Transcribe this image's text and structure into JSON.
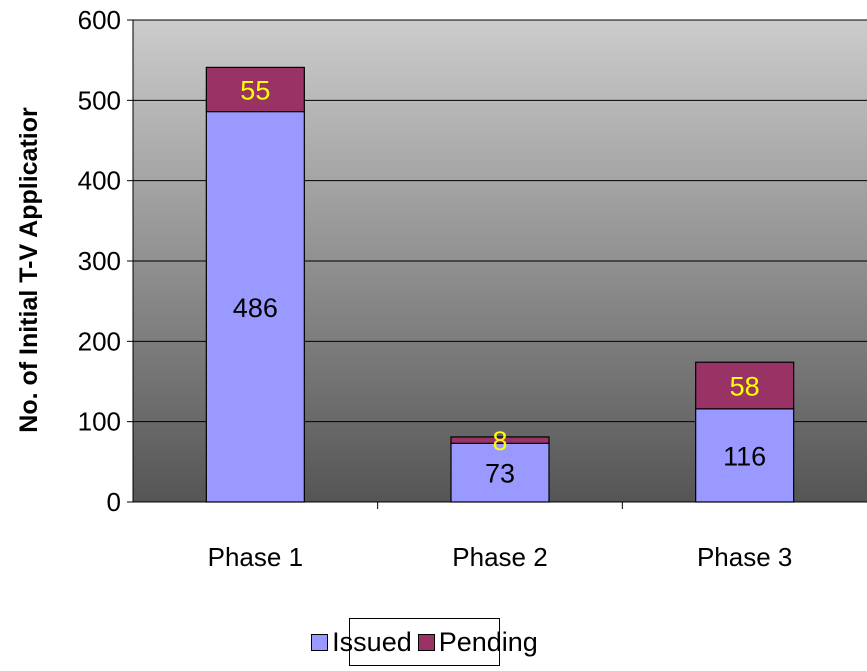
{
  "chart_data": {
    "type": "bar",
    "stacked": true,
    "categories": [
      "Phase 1",
      "Phase 2",
      "Phase 3"
    ],
    "series": [
      {
        "name": "Issued",
        "values": [
          486,
          73,
          116
        ],
        "color": "#9999ff",
        "label_color": "#000000"
      },
      {
        "name": "Pending",
        "values": [
          55,
          8,
          58
        ],
        "color": "#993366",
        "label_color": "#ffff00"
      }
    ],
    "title": "",
    "xlabel": "",
    "ylabel": "No. of Initial T-V Applicatior",
    "ylim": [
      0,
      600
    ],
    "yticks": [
      "0",
      "100",
      "200",
      "300",
      "400",
      "500",
      "600"
    ],
    "grid": true,
    "legend_position": "bottom"
  }
}
